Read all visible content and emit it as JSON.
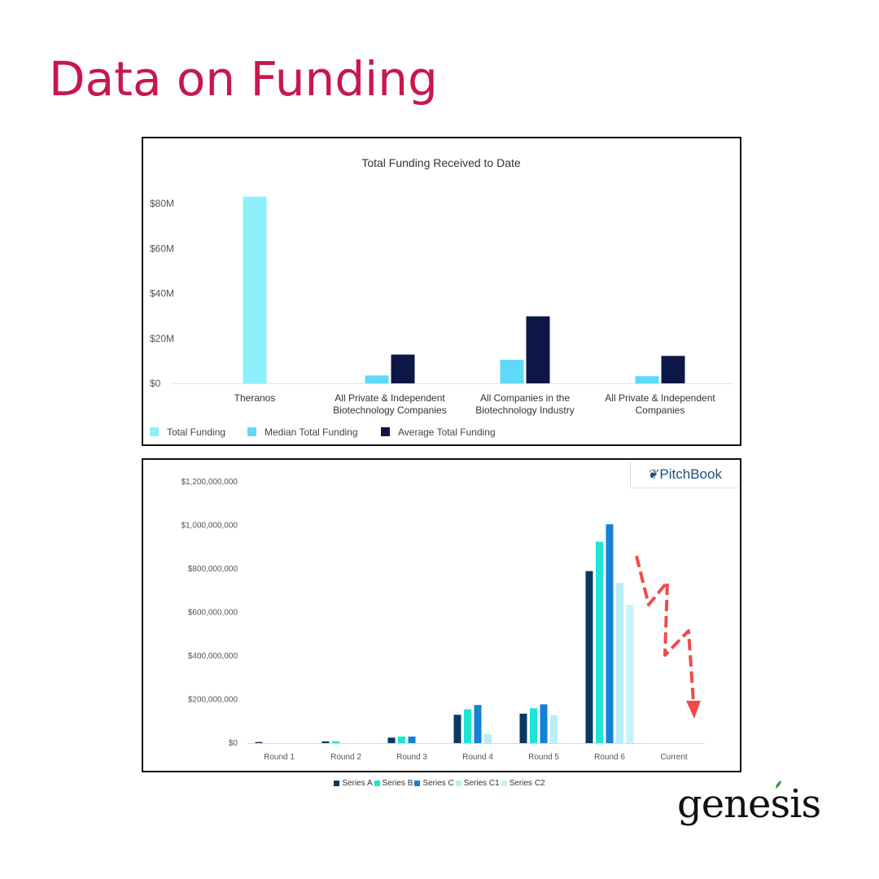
{
  "page": {
    "title": "Data on Funding"
  },
  "logos": {
    "pitchbook": "PitchBook",
    "genesis": "genesis"
  },
  "colors": {
    "title": "#c8174d",
    "total_funding": "#8ff0fb",
    "median_total_funding": "#5fd9f7",
    "average_total_funding": "#0d1747",
    "series_a": "#0a3a63",
    "series_b": "#1ee4d4",
    "series_c": "#1482d8",
    "series_c1": "#b8eef8",
    "series_c2": "#c7f2fb",
    "arrow": "#f04b4b"
  },
  "chart_data": [
    {
      "type": "bar",
      "title": "Total Funding Received to Date",
      "categories": [
        [
          "Theranos"
        ],
        [
          "All Private & Independent",
          "Biotechnology Companies"
        ],
        [
          "All Companies in the",
          "Biotechnology Industry"
        ],
        [
          "All Private & Independent",
          "Companies"
        ]
      ],
      "series": [
        {
          "name": "Total Funding",
          "values": [
            83,
            null,
            null,
            null
          ]
        },
        {
          "name": "Median Total Funding",
          "values": [
            null,
            3.5,
            10.5,
            3.2
          ]
        },
        {
          "name": "Average Total Funding",
          "values": [
            null,
            12.8,
            29.8,
            12.2
          ]
        }
      ],
      "yticks": [
        "$0",
        "$20M",
        "$40M",
        "$60M",
        "$80M"
      ],
      "ylim": [
        0,
        80
      ],
      "legend": "bottom-left",
      "grid": false
    },
    {
      "type": "bar",
      "title": "",
      "categories": [
        "Round 1",
        "Round 2",
        "Round 3",
        "Round 4",
        "Round 5",
        "Round 6",
        "Current"
      ],
      "series": [
        {
          "name": "Series A",
          "values": [
            5000000,
            8000000,
            25000000,
            130000000,
            135000000,
            790000000,
            null
          ]
        },
        {
          "name": "Series B",
          "values": [
            null,
            8000000,
            30000000,
            155000000,
            160000000,
            925000000,
            null
          ]
        },
        {
          "name": "Series C",
          "values": [
            null,
            null,
            30000000,
            175000000,
            178000000,
            1005000000,
            null
          ]
        },
        {
          "name": "Series C1",
          "values": [
            null,
            null,
            null,
            42000000,
            128000000,
            735000000,
            null
          ]
        },
        {
          "name": "Series C2",
          "values": [
            null,
            null,
            null,
            null,
            null,
            635000000,
            null
          ]
        }
      ],
      "yticks": [
        "$0",
        "$200,000,000",
        "$400,000,000",
        "$600,000,000",
        "$800,000,000",
        "$1,000,000,000",
        "$1,200,000,000"
      ],
      "ylim": [
        0,
        1200000000
      ],
      "legend": "bottom-center",
      "grid": false
    }
  ]
}
